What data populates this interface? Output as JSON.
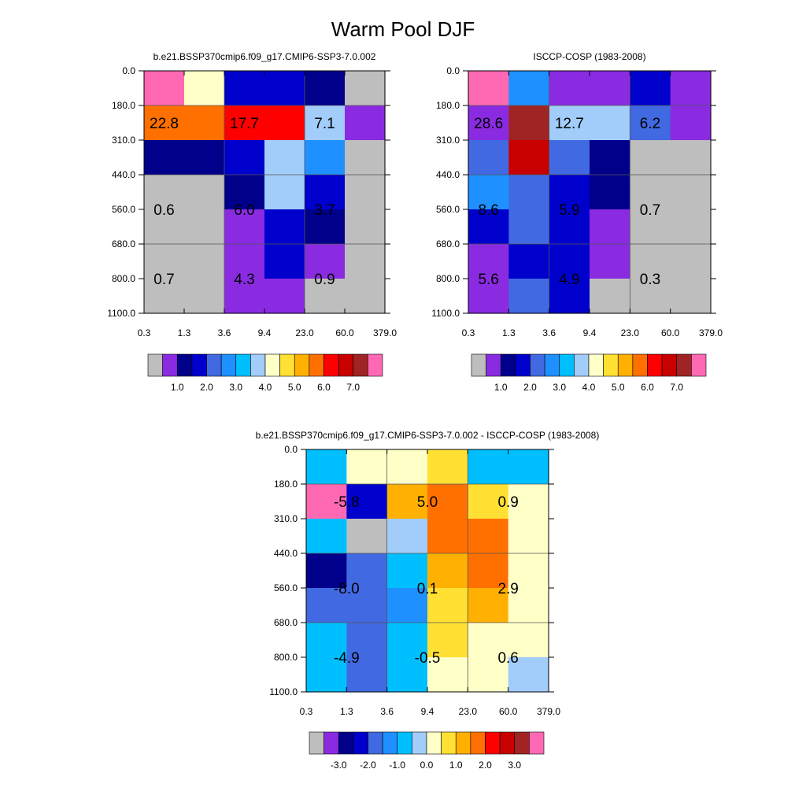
{
  "title": "Warm Pool DJF",
  "chart_data": [
    {
      "type": "heatmap",
      "title": "b.e21.BSSP370cmip6.f09_g17.CMIP6-SSP3-7.0.002",
      "x_edges": [
        "0.3",
        "1.3",
        "3.6",
        "9.4",
        "23.0",
        "60.0",
        "379.0"
      ],
      "y_edges": [
        "0.0",
        "180.0",
        "310.0",
        "440.0",
        "560.0",
        "680.0",
        "800.0",
        "1100.0"
      ],
      "cell_colors": [
        [
          15,
          8,
          3,
          3,
          2,
          0
        ],
        [
          11,
          11,
          12,
          12,
          7,
          1
        ],
        [
          2,
          2,
          3,
          7,
          5,
          0
        ],
        [
          0,
          0,
          2,
          7,
          3,
          0
        ],
        [
          0,
          0,
          1,
          3,
          2,
          0
        ],
        [
          0,
          0,
          1,
          3,
          1,
          0
        ],
        [
          0,
          0,
          1,
          1,
          0,
          0
        ]
      ],
      "labels": [
        {
          "text": "22.8",
          "col": 0.5,
          "row": 1.5
        },
        {
          "text": "17.7",
          "col": 2.5,
          "row": 1.5
        },
        {
          "text": "7.1",
          "col": 4.5,
          "row": 1.5
        },
        {
          "text": "0.6",
          "col": 0.5,
          "row": 4.0
        },
        {
          "text": "6.0",
          "col": 2.5,
          "row": 4.0
        },
        {
          "text": "3.7",
          "col": 4.5,
          "row": 4.0
        },
        {
          "text": "0.7",
          "col": 0.5,
          "row": 6.0
        },
        {
          "text": "4.3",
          "col": 2.5,
          "row": 6.0
        },
        {
          "text": "0.9",
          "col": 4.5,
          "row": 6.0
        }
      ],
      "colorbar": {
        "colors": [
          "#bebebe",
          "#8a2be2",
          "#00008b",
          "#0000cd",
          "#4169e1",
          "#1e90ff",
          "#00bfff",
          "#a2cdfa",
          "#ffffc8",
          "#ffe033",
          "#ffb000",
          "#ff7000",
          "#ff0000",
          "#c80000",
          "#a02424",
          "#ff69b4"
        ],
        "labels": [
          "1.0",
          "2.0",
          "3.0",
          "4.0",
          "5.0",
          "6.0",
          "7.0"
        ]
      }
    },
    {
      "type": "heatmap",
      "title": "ISCCP-COSP (1983-2008)",
      "x_edges": [
        "0.3",
        "1.3",
        "3.6",
        "9.4",
        "23.0",
        "60.0",
        "379.0"
      ],
      "y_edges": [
        "0.0",
        "180.0",
        "310.0",
        "440.0",
        "560.0",
        "680.0",
        "800.0",
        "1100.0"
      ],
      "cell_colors": [
        [
          15,
          5,
          1,
          1,
          3,
          1
        ],
        [
          1,
          14,
          7,
          7,
          4,
          1
        ],
        [
          4,
          13,
          4,
          2,
          0,
          0
        ],
        [
          5,
          4,
          3,
          2,
          0,
          0
        ],
        [
          3,
          4,
          3,
          1,
          0,
          0
        ],
        [
          1,
          3,
          3,
          1,
          0,
          0
        ],
        [
          1,
          4,
          3,
          0,
          0,
          0
        ]
      ],
      "labels": [
        {
          "text": "28.6",
          "col": 0.5,
          "row": 1.5
        },
        {
          "text": "12.7",
          "col": 2.5,
          "row": 1.5
        },
        {
          "text": "6.2",
          "col": 4.5,
          "row": 1.5
        },
        {
          "text": "8.6",
          "col": 0.5,
          "row": 4.0
        },
        {
          "text": "5.9",
          "col": 2.5,
          "row": 4.0
        },
        {
          "text": "0.7",
          "col": 4.5,
          "row": 4.0
        },
        {
          "text": "5.6",
          "col": 0.5,
          "row": 6.0
        },
        {
          "text": "4.9",
          "col": 2.5,
          "row": 6.0
        },
        {
          "text": "0.3",
          "col": 4.5,
          "row": 6.0
        }
      ],
      "colorbar": {
        "colors": [
          "#bebebe",
          "#8a2be2",
          "#00008b",
          "#0000cd",
          "#4169e1",
          "#1e90ff",
          "#00bfff",
          "#a2cdfa",
          "#ffffc8",
          "#ffe033",
          "#ffb000",
          "#ff7000",
          "#ff0000",
          "#c80000",
          "#a02424",
          "#ff69b4"
        ],
        "labels": [
          "1.0",
          "2.0",
          "3.0",
          "4.0",
          "5.0",
          "6.0",
          "7.0"
        ]
      }
    },
    {
      "type": "heatmap",
      "title": "b.e21.BSSP370cmip6.f09_g17.CMIP6-SSP3-7.0.002 - ISCCP-COSP (1983-2008)",
      "x_edges": [
        "0.3",
        "1.3",
        "3.6",
        "9.4",
        "23.0",
        "60.0",
        "379.0"
      ],
      "y_edges": [
        "0.0",
        "180.0",
        "310.0",
        "440.0",
        "560.0",
        "680.0",
        "800.0",
        "1100.0"
      ],
      "cell_colors": [
        [
          6,
          8,
          8,
          9,
          6,
          6
        ],
        [
          15,
          3,
          10,
          11,
          9,
          8
        ],
        [
          6,
          0,
          7,
          11,
          11,
          8
        ],
        [
          2,
          4,
          6,
          10,
          11,
          8
        ],
        [
          4,
          4,
          5,
          9,
          10,
          8
        ],
        [
          6,
          4,
          6,
          9,
          8,
          8
        ],
        [
          6,
          4,
          6,
          8,
          8,
          7
        ]
      ],
      "labels": [
        {
          "text": "-5.8",
          "col": 1.0,
          "row": 1.5
        },
        {
          "text": "5.0",
          "col": 3.0,
          "row": 1.5
        },
        {
          "text": "0.9",
          "col": 5.0,
          "row": 1.5
        },
        {
          "text": "-8.0",
          "col": 1.0,
          "row": 4.0
        },
        {
          "text": "0.1",
          "col": 3.0,
          "row": 4.0
        },
        {
          "text": "2.9",
          "col": 5.0,
          "row": 4.0
        },
        {
          "text": "-4.9",
          "col": 1.0,
          "row": 6.0
        },
        {
          "text": "-0.5",
          "col": 3.0,
          "row": 6.0
        },
        {
          "text": "0.6",
          "col": 5.0,
          "row": 6.0
        }
      ],
      "colorbar": {
        "colors": [
          "#bebebe",
          "#8a2be2",
          "#00008b",
          "#0000cd",
          "#4169e1",
          "#1e90ff",
          "#00bfff",
          "#a2cdfa",
          "#ffffc8",
          "#ffe033",
          "#ffb000",
          "#ff7000",
          "#ff0000",
          "#c80000",
          "#a02424",
          "#ff69b4"
        ],
        "labels": [
          "-3.0",
          "-2.0",
          "-1.0",
          "0.0",
          "1.0",
          "2.0",
          "3.0"
        ]
      }
    }
  ]
}
